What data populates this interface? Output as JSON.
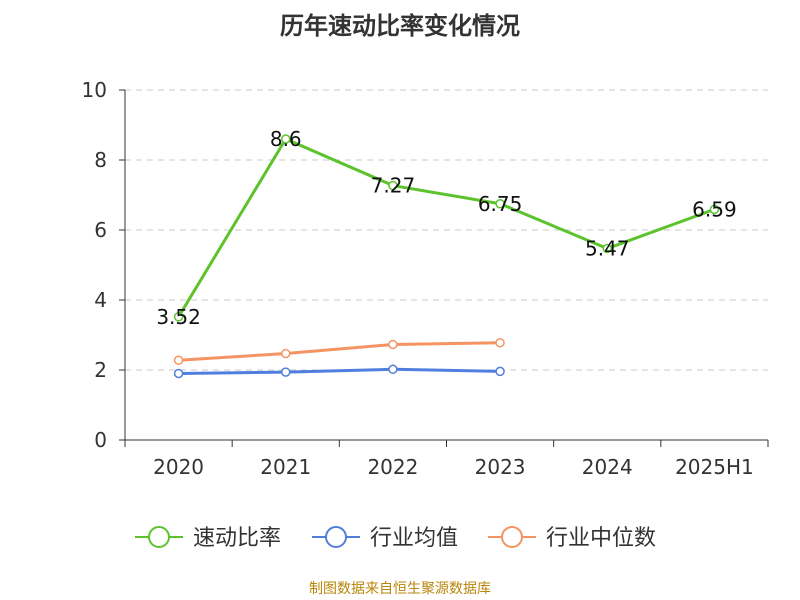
{
  "chart_data": {
    "type": "line",
    "title": "历年速动比率变化情况",
    "categories": [
      "2020",
      "2021",
      "2022",
      "2023",
      "2024",
      "2025H1"
    ],
    "ylim": [
      0,
      10
    ],
    "yticks": [
      "0",
      "2",
      "4",
      "6",
      "8",
      "10"
    ],
    "grid": true,
    "legend_position": "bottom",
    "series": [
      {
        "name": "速动比率",
        "color": "#5cc32d",
        "values": [
          3.52,
          8.6,
          7.27,
          6.75,
          5.47,
          6.59
        ],
        "labels": [
          "3.52",
          "8.6",
          "7.27",
          "6.75",
          "5.47",
          "6.59"
        ]
      },
      {
        "name": "行业均值",
        "color": "#4f7fdc",
        "values": [
          1.9,
          1.94,
          2.02,
          1.96,
          null,
          null
        ]
      },
      {
        "name": "行业中位数",
        "color": "#f59362",
        "values": [
          2.28,
          2.47,
          2.73,
          2.78,
          null,
          null
        ]
      }
    ]
  },
  "footer": "制图数据来自恒生聚源数据库"
}
